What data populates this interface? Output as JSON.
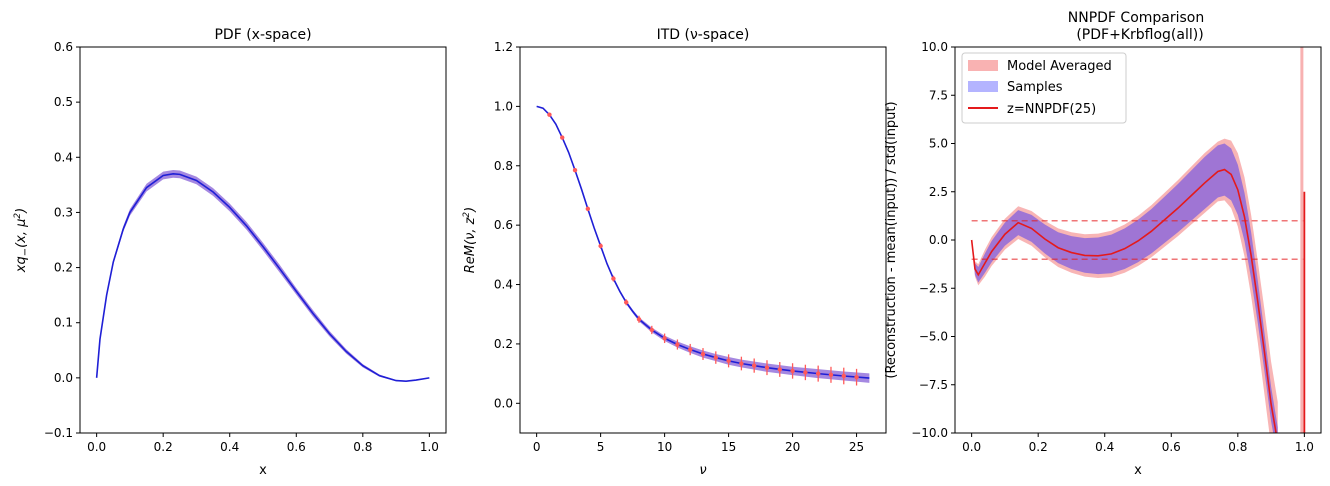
{
  "colors": {
    "model_band": "#f7a8a8",
    "samples_band": "#8f6ad9",
    "samples_legend": "#b4b4ff",
    "reconstruction_line": "#e41a1c",
    "samples_line": "#1f1fd6",
    "data_points": "#ff5a5a",
    "model_legend": "#f9b2b2"
  },
  "chart_data": [
    {
      "type": "line",
      "title": "PDF (x-space)",
      "xlabel": "x",
      "ylabel_base": "xq",
      "ylabel_sub": "−",
      "ylabel_rest": "(x, μ",
      "ylabel_sup": "2",
      "ylabel_end": ")",
      "xlim": [
        -0.05,
        1.05
      ],
      "ylim": [
        -0.1,
        0.6
      ],
      "xticks": [
        0.0,
        0.2,
        0.4,
        0.6,
        0.8,
        1.0
      ],
      "xtick_labels": [
        "0.0",
        "0.2",
        "0.4",
        "0.6",
        "0.8",
        "1.0"
      ],
      "yticks": [
        -0.1,
        0.0,
        0.1,
        0.2,
        0.3,
        0.4,
        0.5,
        0.6
      ],
      "ytick_labels": [
        "−0.1",
        "0.0",
        "0.1",
        "0.2",
        "0.3",
        "0.4",
        "0.5",
        "0.6"
      ],
      "series": [
        {
          "x": [
            0.0,
            0.01,
            0.03,
            0.05,
            0.08,
            0.1,
            0.15,
            0.2,
            0.23,
            0.25,
            0.3,
            0.35,
            0.4,
            0.45,
            0.5,
            0.55,
            0.6,
            0.65,
            0.7,
            0.75,
            0.8,
            0.85,
            0.9,
            0.93,
            0.96,
            1.0
          ],
          "y": [
            0.0,
            0.07,
            0.15,
            0.21,
            0.27,
            0.3,
            0.345,
            0.367,
            0.37,
            0.369,
            0.358,
            0.337,
            0.309,
            0.276,
            0.238,
            0.198,
            0.157,
            0.117,
            0.08,
            0.048,
            0.022,
            0.004,
            -0.005,
            -0.006,
            -0.004,
            0.0
          ],
          "band_width": [
            0.0,
            0.002,
            0.003,
            0.004,
            0.005,
            0.006,
            0.007,
            0.007,
            0.007,
            0.007,
            0.007,
            0.007,
            0.007,
            0.007,
            0.007,
            0.007,
            0.006,
            0.006,
            0.005,
            0.004,
            0.003,
            0.002,
            0.001,
            0.001,
            0.001,
            0.0
          ]
        }
      ]
    },
    {
      "type": "line",
      "title": "ITD (ν-space)",
      "xlabel": "ν",
      "ylabel_base": "ReM",
      "ylabel_rest": "(ν, z",
      "ylabel_sup": "2",
      "ylabel_end": ")",
      "xlim": [
        -1.3,
        27.3
      ],
      "ylim": [
        -0.1,
        1.2
      ],
      "xticks": [
        0,
        5,
        10,
        15,
        20,
        25
      ],
      "xtick_labels": [
        "0",
        "5",
        "10",
        "15",
        "20",
        "25"
      ],
      "yticks": [
        0.0,
        0.2,
        0.4,
        0.6,
        0.8,
        1.0,
        1.2
      ],
      "ytick_labels": [
        "0.0",
        "0.2",
        "0.4",
        "0.6",
        "0.8",
        "1.0",
        "1.2"
      ],
      "series": [
        {
          "x": [
            0,
            0.5,
            1,
            1.5,
            2,
            2.5,
            3,
            3.5,
            4,
            4.5,
            5,
            5.5,
            6,
            6.5,
            7,
            7.5,
            8,
            9,
            10,
            11,
            12,
            13,
            14,
            15,
            16,
            18,
            20,
            22,
            24,
            26
          ],
          "y": [
            1.0,
            0.994,
            0.972,
            0.94,
            0.895,
            0.845,
            0.785,
            0.722,
            0.655,
            0.59,
            0.53,
            0.47,
            0.42,
            0.377,
            0.34,
            0.31,
            0.283,
            0.247,
            0.219,
            0.198,
            0.181,
            0.166,
            0.154,
            0.143,
            0.134,
            0.12,
            0.109,
            0.1,
            0.092,
            0.085
          ],
          "band_width": [
            0.0,
            0.001,
            0.002,
            0.003,
            0.003,
            0.004,
            0.004,
            0.004,
            0.004,
            0.004,
            0.004,
            0.004,
            0.005,
            0.005,
            0.006,
            0.006,
            0.007,
            0.008,
            0.009,
            0.01,
            0.011,
            0.012,
            0.012,
            0.013,
            0.013,
            0.014,
            0.014,
            0.015,
            0.015,
            0.016
          ]
        }
      ],
      "points": {
        "x": [
          1,
          2,
          3,
          4,
          5,
          6,
          7,
          8,
          9,
          10,
          11,
          12,
          13,
          14,
          15,
          16,
          17,
          18,
          19,
          20,
          21,
          22,
          23,
          24,
          25
        ],
        "y": [
          0.972,
          0.895,
          0.785,
          0.655,
          0.53,
          0.42,
          0.34,
          0.283,
          0.247,
          0.219,
          0.198,
          0.181,
          0.166,
          0.154,
          0.143,
          0.134,
          0.127,
          0.12,
          0.114,
          0.109,
          0.104,
          0.1,
          0.096,
          0.092,
          0.088
        ],
        "err": [
          0.005,
          0.006,
          0.007,
          0.008,
          0.009,
          0.01,
          0.01,
          0.012,
          0.014,
          0.016,
          0.017,
          0.019,
          0.02,
          0.021,
          0.022,
          0.023,
          0.024,
          0.025,
          0.025,
          0.026,
          0.026,
          0.027,
          0.027,
          0.028,
          0.028
        ]
      }
    },
    {
      "type": "line",
      "title_line1": "NNPDF Comparison",
      "title_line2": "(PDF+Krbflog(all))",
      "xlabel": "x",
      "ylabel": "(Reconstruction - mean(input)) / std(input)",
      "xlim": [
        -0.05,
        1.05
      ],
      "ylim": [
        -10,
        10
      ],
      "xticks": [
        0.0,
        0.2,
        0.4,
        0.6,
        0.8,
        1.0
      ],
      "xtick_labels": [
        "0.0",
        "0.2",
        "0.4",
        "0.6",
        "0.8",
        "1.0"
      ],
      "yticks": [
        -10.0,
        -7.5,
        -5.0,
        -2.5,
        0.0,
        2.5,
        5.0,
        7.5,
        10.0
      ],
      "ytick_labels": [
        "−10.0",
        "−7.5",
        "−5.0",
        "−2.5",
        "0.0",
        "2.5",
        "5.0",
        "7.5",
        "10.0"
      ],
      "hlines": [
        1.0,
        -1.0
      ],
      "legend": [
        "Model Averaged",
        "Samples",
        "z=NNPDF(25)"
      ],
      "legend_position": "top-left",
      "series": [
        {
          "x": [
            0.0,
            0.01,
            0.02,
            0.04,
            0.06,
            0.1,
            0.14,
            0.18,
            0.22,
            0.26,
            0.3,
            0.34,
            0.38,
            0.42,
            0.46,
            0.5,
            0.54,
            0.58,
            0.62,
            0.66,
            0.7,
            0.74,
            0.76,
            0.78,
            0.8,
            0.82,
            0.84,
            0.86,
            0.88,
            0.9,
            0.92
          ],
          "y": [
            0.0,
            -1.5,
            -1.8,
            -1.2,
            -0.6,
            0.3,
            0.9,
            0.6,
            0.05,
            -0.4,
            -0.65,
            -0.8,
            -0.82,
            -0.72,
            -0.45,
            -0.05,
            0.45,
            1.05,
            1.65,
            2.3,
            2.95,
            3.55,
            3.65,
            3.4,
            2.6,
            1.2,
            -0.8,
            -3.2,
            -5.8,
            -8.5,
            -10.5
          ],
          "band_width": [
            0.0,
            0.3,
            0.4,
            0.5,
            0.55,
            0.6,
            0.65,
            0.7,
            0.75,
            0.8,
            0.85,
            0.9,
            0.95,
            1.0,
            1.05,
            1.1,
            1.15,
            1.2,
            1.25,
            1.3,
            1.35,
            1.35,
            1.35,
            1.35,
            1.3,
            1.25,
            1.2,
            1.1,
            1.0,
            0.9,
            0.8
          ],
          "model_extra": [
            0.0,
            0.1,
            0.15,
            0.2,
            0.2,
            0.2,
            0.2,
            0.2,
            0.2,
            0.2,
            0.2,
            0.2,
            0.2,
            0.2,
            0.2,
            0.2,
            0.2,
            0.2,
            0.2,
            0.2,
            0.2,
            0.2,
            0.25,
            0.4,
            0.6,
            0.8,
            0.9,
            1.0,
            1.2,
            1.3,
            1.3
          ]
        }
      ],
      "edge_spike": {
        "x": 1.0,
        "y_from": -10,
        "y_to": 2.5
      }
    }
  ]
}
